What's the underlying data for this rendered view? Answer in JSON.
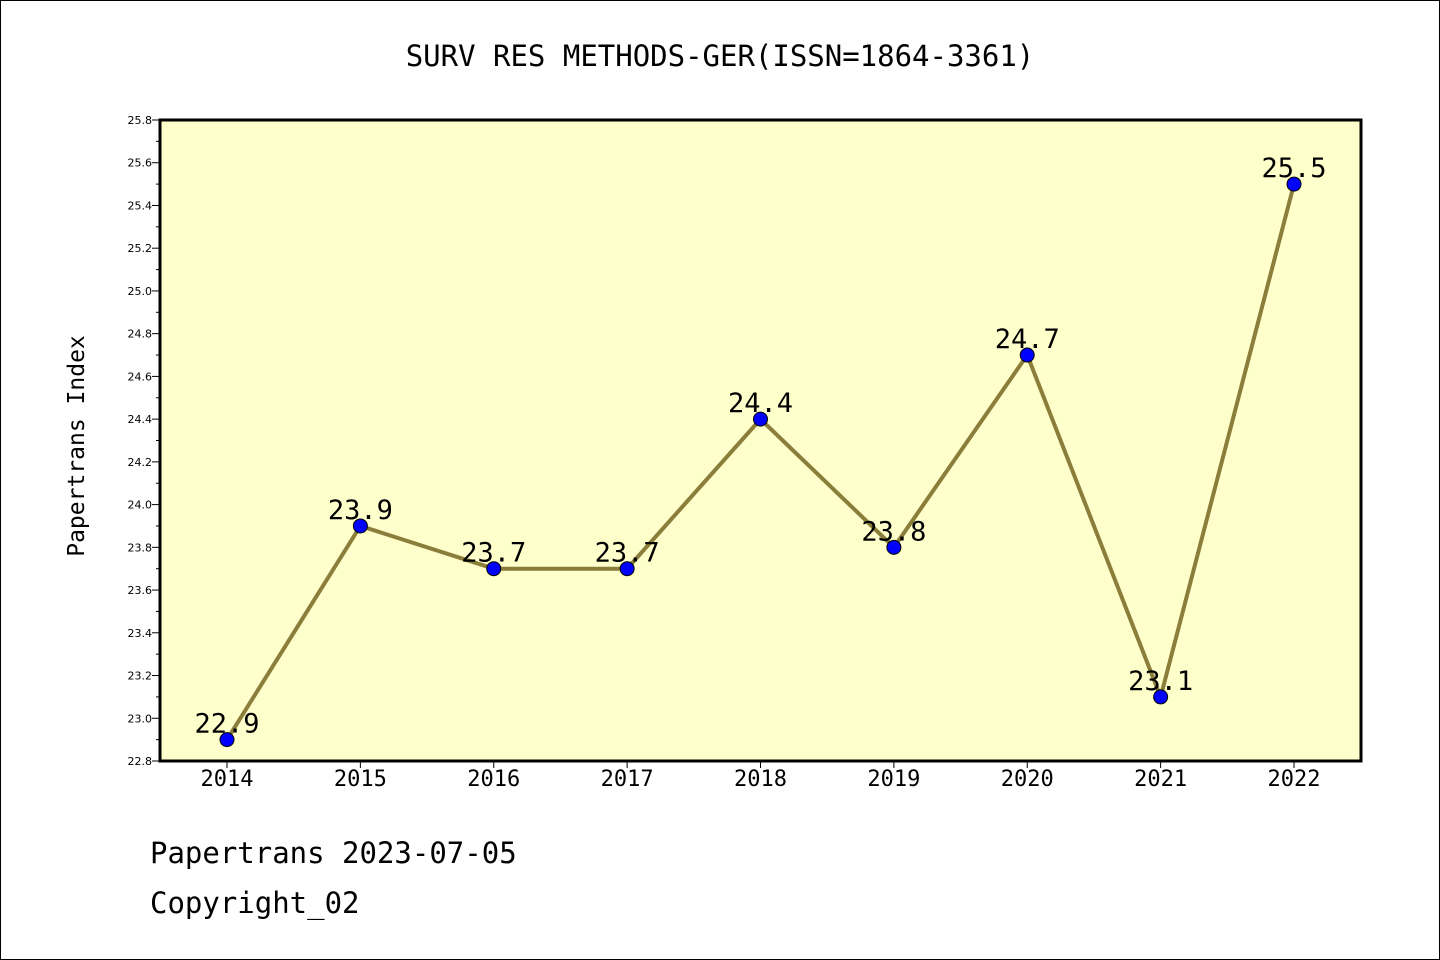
{
  "chart_data": {
    "type": "line",
    "title": "SURV RES METHODS-GER(ISSN=1864-3361)",
    "xlabel": "",
    "ylabel": "Papertrans Index",
    "categories": [
      "2014",
      "2015",
      "2016",
      "2017",
      "2018",
      "2019",
      "2020",
      "2021",
      "2022"
    ],
    "series": [
      {
        "values": [
          22.9,
          23.9,
          23.7,
          23.7,
          24.4,
          23.8,
          24.7,
          23.1,
          25.5
        ],
        "data_labels": [
          "22.9",
          "23.9",
          "23.7",
          "23.7",
          "24.4",
          "23.8",
          "24.7",
          "23.1",
          "25.5"
        ]
      }
    ],
    "ylim": [
      22.8,
      25.8
    ],
    "yticks": [
      "22.8",
      "23.0",
      "23.2",
      "23.4",
      "23.6",
      "23.8",
      "24.0",
      "24.2",
      "24.4",
      "24.6",
      "24.8",
      "25.0",
      "25.2",
      "25.4",
      "25.6",
      "25.8"
    ],
    "grid": false,
    "legend": "none",
    "colors": {
      "plot_background": "#ffffcc",
      "line": "#8b7d3a",
      "marker": "#0000ff",
      "axis": "#000000"
    }
  },
  "footer": {
    "date_line": "Papertrans 2023-07-05",
    "copyright": "Copyright_02"
  }
}
